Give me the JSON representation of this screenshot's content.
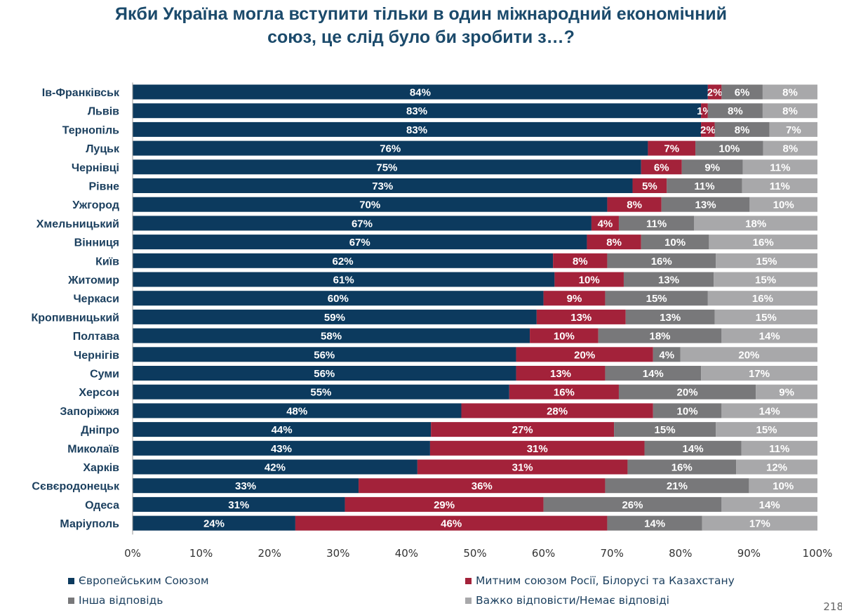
{
  "title": [
    "Якби Україна могла вступити тільки в один міжнародний економічний",
    "союз, це слід було би зробити з…?"
  ],
  "page_number": "218",
  "chart_data": {
    "type": "bar",
    "orientation": "horizontal",
    "stacked": true,
    "xlim": [
      0,
      100
    ],
    "x_ticks": [
      "0%",
      "10%",
      "20%",
      "30%",
      "40%",
      "50%",
      "60%",
      "70%",
      "80%",
      "90%",
      "100%"
    ],
    "grid": false,
    "legend_position": "bottom",
    "categories": [
      "Ів-Франківськ",
      "Львів",
      "Тернопіль",
      "Луцьк",
      "Чернівці",
      "Рівне",
      "Ужгород",
      "Хмельницький",
      "Вінниця",
      "Київ",
      "Житомир",
      "Черкаси",
      "Кропивницький",
      "Полтава",
      "Чернігів",
      "Суми",
      "Херсон",
      "Запоріжжя",
      "Дніпро",
      "Миколаїв",
      "Харків",
      "Сєвєродонецьк",
      "Одеса",
      "Маріуполь"
    ],
    "series": [
      {
        "name": "Європейським Союзом",
        "color": "#0c3a5e",
        "values": [
          84,
          83,
          83,
          76,
          75,
          73,
          70,
          67,
          67,
          62,
          61,
          60,
          59,
          58,
          56,
          56,
          55,
          48,
          44,
          43,
          42,
          33,
          31,
          24
        ]
      },
      {
        "name": "Митним союзом Росії, Білорусі та Казахстану",
        "color": "#a3223a",
        "values": [
          2,
          1,
          2,
          7,
          6,
          5,
          8,
          4,
          8,
          8,
          10,
          9,
          13,
          10,
          20,
          13,
          16,
          28,
          27,
          31,
          31,
          36,
          29,
          46
        ]
      },
      {
        "name": "Інша відповідь",
        "color": "#78787a",
        "values": [
          6,
          8,
          8,
          10,
          9,
          11,
          13,
          11,
          10,
          16,
          13,
          15,
          13,
          18,
          4,
          14,
          20,
          10,
          15,
          14,
          16,
          21,
          26,
          14
        ]
      },
      {
        "name": "Важко відповісти/Немає відповіді",
        "color": "#a8a8aa",
        "values": [
          8,
          8,
          7,
          8,
          11,
          11,
          10,
          18,
          16,
          15,
          15,
          16,
          15,
          14,
          20,
          17,
          9,
          14,
          15,
          11,
          12,
          10,
          14,
          17
        ]
      }
    ]
  }
}
